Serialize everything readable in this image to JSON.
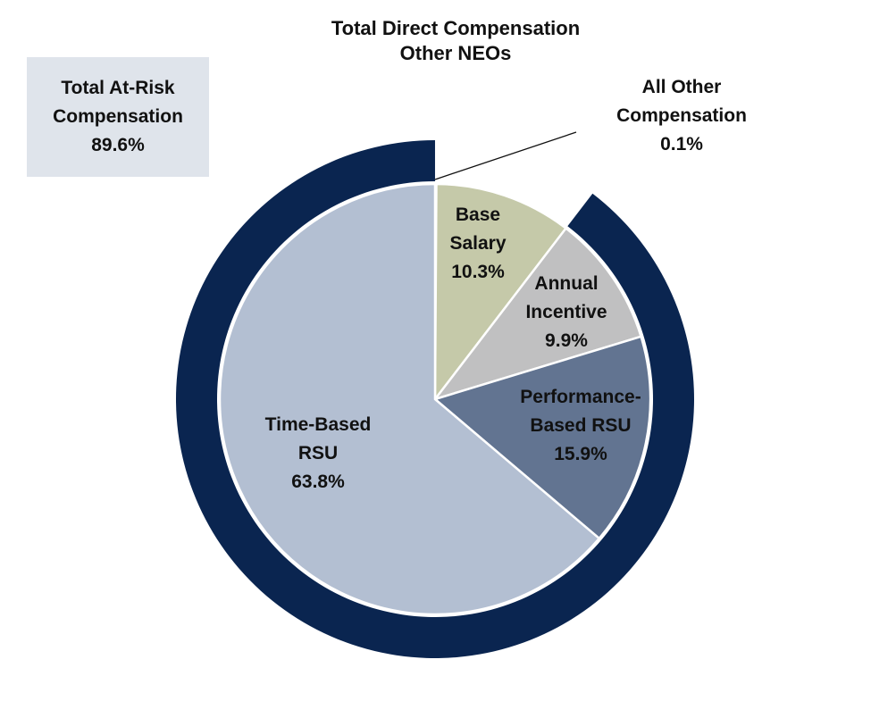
{
  "chart_data": {
    "type": "pie",
    "title": [
      "Total Direct Compensation",
      "Other NEOs"
    ],
    "slices": [
      {
        "label": [
          "All Other",
          "Compensation"
        ],
        "value": 0.1,
        "display": "0.1%",
        "color": "#ffffff"
      },
      {
        "label": [
          "Base",
          "Salary"
        ],
        "value": 10.3,
        "display": "10.3%",
        "color": "#c5c9a9"
      },
      {
        "label": [
          "Annual",
          "Incentive"
        ],
        "value": 9.9,
        "display": "9.9%",
        "color": "#c0c0c1"
      },
      {
        "label": [
          "Performance-",
          "Based RSU"
        ],
        "value": 15.9,
        "display": "15.9%",
        "color": "#627491"
      },
      {
        "label": [
          "Time-Based",
          "RSU"
        ],
        "value": 63.8,
        "display": "63.8%",
        "color": "#b3bfd2"
      }
    ],
    "outer_ring": {
      "label": [
        "Total At-Risk",
        "Compensation"
      ],
      "value": 89.6,
      "display": "89.6%",
      "color": "#0a2550",
      "box_color": "#dfe4eb"
    }
  }
}
